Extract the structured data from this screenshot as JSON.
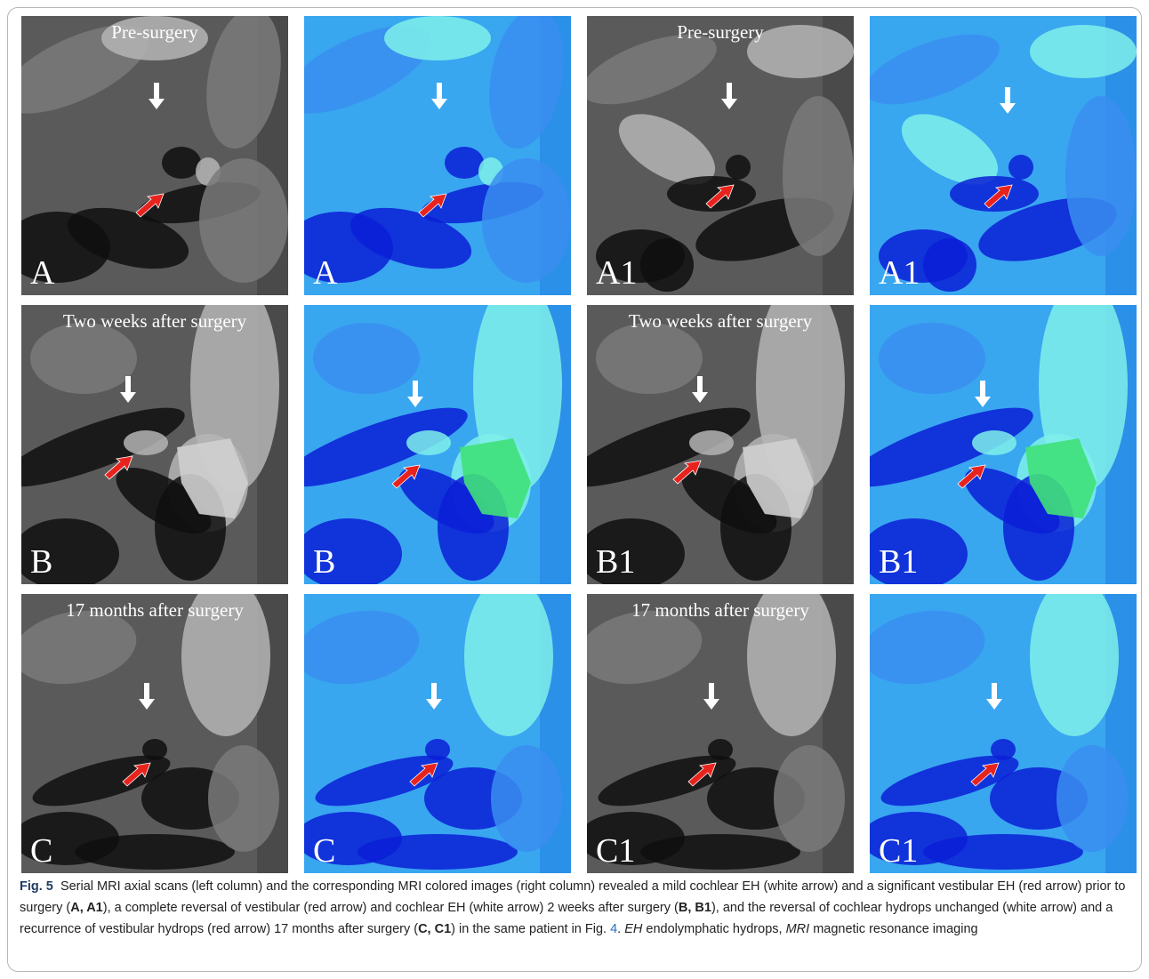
{
  "panels": [
    {
      "id": "A",
      "label": "A",
      "caption": "Pre-surgery",
      "style": "gray",
      "variant": 0,
      "white_arrow": [
        152,
        105
      ],
      "red_arrow": [
        160,
        200
      ]
    },
    {
      "id": "A-color",
      "label": "A",
      "caption": "",
      "style": "color",
      "variant": 0,
      "white_arrow": [
        152,
        105
      ],
      "red_arrow": [
        160,
        200
      ]
    },
    {
      "id": "A1",
      "label": "A1",
      "caption": "Pre-surgery",
      "style": "gray",
      "variant": 1,
      "white_arrow": [
        160,
        105
      ],
      "red_arrow": [
        165,
        190
      ]
    },
    {
      "id": "A1-color",
      "label": "A1",
      "caption": "",
      "style": "color",
      "variant": 1,
      "white_arrow": [
        155,
        110
      ],
      "red_arrow": [
        160,
        190
      ]
    },
    {
      "id": "B",
      "label": "B",
      "caption": "Two weeks after surgery",
      "style": "gray",
      "variant": 2,
      "white_arrow": [
        120,
        110
      ],
      "red_arrow": [
        125,
        170
      ]
    },
    {
      "id": "B-color",
      "label": "B",
      "caption": "",
      "style": "color",
      "variant": 2,
      "white_arrow": [
        125,
        115
      ],
      "red_arrow": [
        130,
        180
      ]
    },
    {
      "id": "B1",
      "label": "B1",
      "caption": "Two weeks after surgery",
      "style": "gray",
      "variant": 3,
      "white_arrow": [
        127,
        110
      ],
      "red_arrow": [
        128,
        175
      ]
    },
    {
      "id": "B1-color",
      "label": "B1",
      "caption": "",
      "style": "color",
      "variant": 3,
      "white_arrow": [
        127,
        115
      ],
      "red_arrow": [
        130,
        180
      ]
    },
    {
      "id": "C",
      "label": "C",
      "caption": "17 months  after surgery",
      "style": "gray",
      "variant": 4,
      "white_arrow": [
        141,
        130
      ],
      "red_arrow": [
        145,
        190
      ]
    },
    {
      "id": "C-color",
      "label": "C",
      "caption": "",
      "style": "color",
      "variant": 4,
      "white_arrow": [
        146,
        130
      ],
      "red_arrow": [
        150,
        190
      ]
    },
    {
      "id": "C1",
      "label": "C1",
      "caption": "17 months  after surgery",
      "style": "gray",
      "variant": 5,
      "white_arrow": [
        140,
        130
      ],
      "red_arrow": [
        145,
        190
      ]
    },
    {
      "id": "C1-color",
      "label": "C1",
      "caption": "",
      "style": "color",
      "variant": 5,
      "white_arrow": [
        140,
        130
      ],
      "red_arrow": [
        145,
        190
      ]
    }
  ],
  "caption": {
    "fig_label": "Fig. 5",
    "text_1": "Serial MRI axial scans (left column) and the corresponding MRI colored images (right column) revealed a mild cochlear EH (white arrow) and a significant vestibular EH (red arrow) prior to surgery (",
    "bold_1": "A, A1",
    "text_2": "), a complete reversal of vestibular (red arrow) and cochlear EH (white arrow) 2 weeks after surgery (",
    "bold_2": "B, B1",
    "text_3": "), and the reversal of cochlear hydrops unchanged (white arrow) and a recurrence of vestibular hydrops (red arrow) 17 months after surgery (",
    "bold_3": "C, C1",
    "text_4": ") in the same patient in Fig. ",
    "link_fig": "4",
    "text_5": ". ",
    "abbr_1": "EH",
    "text_6": " endolymphatic hydrops, ",
    "abbr_2": "MRI",
    "text_7": " magnetic resonance imaging"
  },
  "colors": {
    "gray_bg": "#5a5a5a",
    "color_bg": "#39a6f0",
    "red_arrow": "#e8231d",
    "white_arrow": "#ffffff"
  }
}
